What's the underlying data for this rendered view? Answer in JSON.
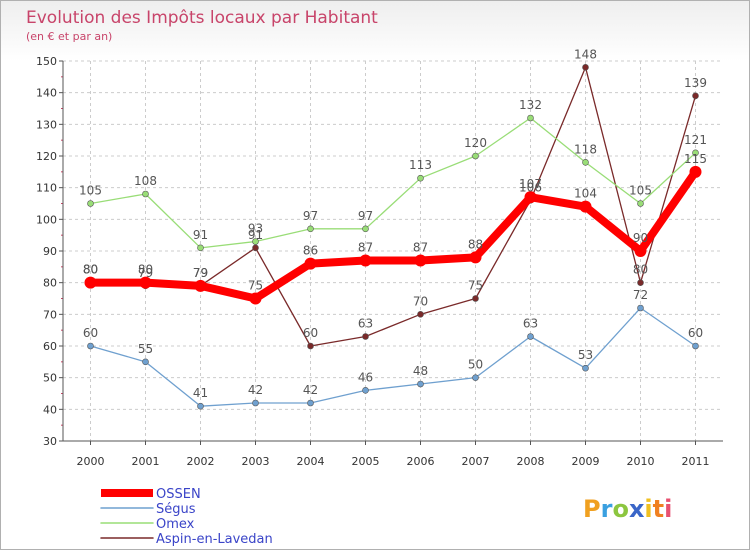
{
  "chart_data": {
    "type": "line",
    "title": "Evolution des Impôts locaux par Habitant",
    "subtitle": "(en € et par an)",
    "xlabel": "",
    "ylabel": "",
    "ylim": [
      30,
      150
    ],
    "yticks": [
      30,
      40,
      50,
      60,
      70,
      80,
      90,
      100,
      110,
      120,
      130,
      140,
      150
    ],
    "grid": true,
    "legend_position": "bottom-left",
    "x": [
      "2000",
      "2001",
      "2002",
      "2003",
      "2004",
      "2005",
      "2006",
      "2007",
      "2008",
      "2009",
      "2010",
      "2011"
    ],
    "series": [
      {
        "name": "OSSEN",
        "values": [
          80,
          80,
          79,
          75,
          86,
          87,
          87,
          88,
          107,
          104,
          90,
          115
        ],
        "color": "#ff0000"
      },
      {
        "name": "Ségus",
        "values": [
          60,
          55,
          41,
          42,
          42,
          46,
          48,
          50,
          63,
          53,
          72,
          60
        ],
        "color": "#6fa0cf"
      },
      {
        "name": "Omex",
        "values": [
          105,
          108,
          91,
          93,
          97,
          97,
          113,
          120,
          132,
          118,
          105,
          121
        ],
        "color": "#99dd77"
      },
      {
        "name": "Aspin-en-Lavedan",
        "values": [
          80,
          79,
          79,
          91,
          60,
          63,
          70,
          75,
          106,
          148,
          80,
          139
        ],
        "color": "#7a2a2a"
      }
    ]
  },
  "logo": {
    "letters": [
      "P",
      "r",
      "o",
      "x",
      "i",
      "t",
      "i"
    ],
    "colors": [
      "#f0a020",
      "#3aa0e0",
      "#8cc63f",
      "#3a66c8",
      "#f0c020",
      "#f08020",
      "#e85070"
    ]
  }
}
